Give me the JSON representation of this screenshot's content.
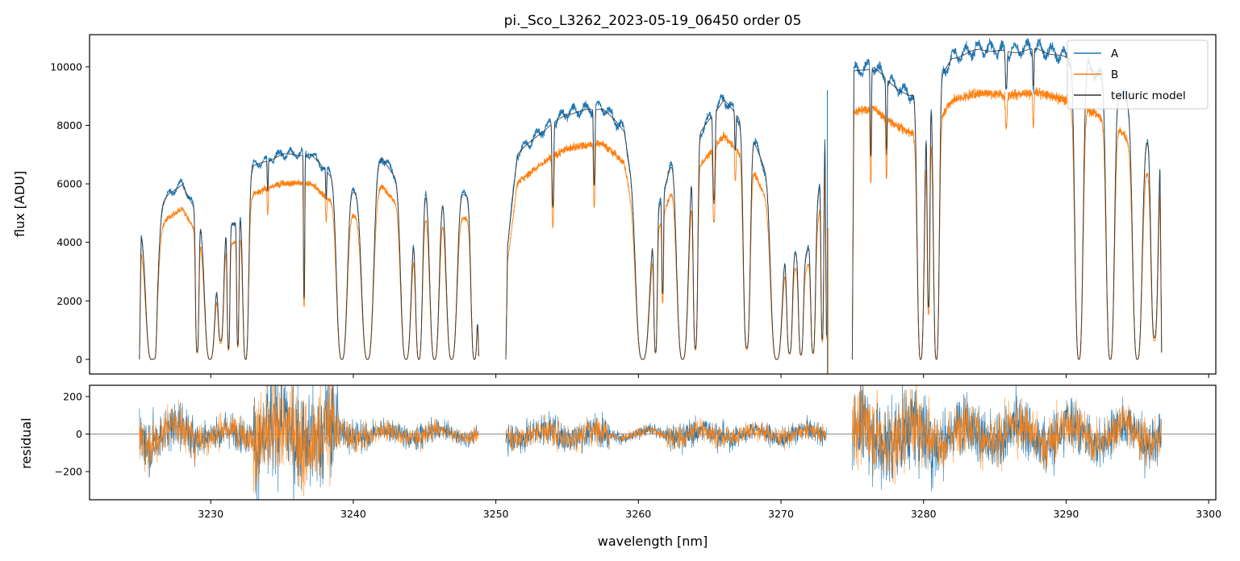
{
  "chart_data": {
    "type": "line",
    "title": "pi._Sco_L3262_2023-05-19_06450  order 05",
    "colors": {
      "A": "#1f77b4",
      "B": "#ff7f0e",
      "telluric": "#333333",
      "zero_line": "#666666"
    },
    "top_panel": {
      "ylabel": "flux [ADU]",
      "ylim": [
        -500,
        11100
      ],
      "yticks": [
        0,
        2000,
        4000,
        6000,
        8000,
        10000
      ],
      "ytick_labels": [
        "0",
        "2000",
        "4000",
        "6000",
        "8000",
        "10000"
      ],
      "legend": {
        "placement": "top-right",
        "entries": [
          "A",
          "B",
          "telluric model"
        ]
      },
      "segments": [
        {
          "x_range": [
            3225.0,
            3248.8
          ],
          "levels": [
            [
              3225.0,
              4300
            ],
            [
              3227.0,
              5600
            ],
            [
              3228.0,
              6000
            ],
            [
              3230.0,
              4000
            ],
            [
              3232.0,
              4800
            ],
            [
              3233.0,
              6600
            ],
            [
              3235.0,
              7000
            ],
            [
              3237.0,
              7000
            ],
            [
              3239.0,
              6000
            ],
            [
              3240.5,
              5600
            ],
            [
              3242.0,
              6900
            ],
            [
              3244.0,
              5500
            ],
            [
              3246.0,
              6000
            ],
            [
              3248.8,
              5400
            ]
          ],
          "b_ratio": 0.86,
          "dips": [
            [
              3225.85,
              0.5,
              1.0
            ],
            [
              3226.05,
              0.15,
              0.95
            ],
            [
              3229.05,
              0.15,
              0.95
            ],
            [
              3229.95,
              0.45,
              1.0
            ],
            [
              3230.7,
              0.25,
              0.85
            ],
            [
              3231.25,
              0.12,
              0.92
            ],
            [
              3231.9,
              0.1,
              0.9
            ],
            [
              3232.45,
              0.25,
              1.0
            ],
            [
              3236.55,
              0.06,
              0.7
            ],
            [
              3239.2,
              0.45,
              1.0
            ],
            [
              3241.0,
              0.5,
              1.0
            ],
            [
              3243.7,
              0.45,
              1.0
            ],
            [
              3244.6,
              0.3,
              1.0
            ],
            [
              3245.7,
              0.4,
              1.0
            ],
            [
              3246.9,
              0.45,
              1.0
            ],
            [
              3248.5,
              0.3,
              1.0
            ],
            [
              3234.0,
              0.05,
              0.15
            ],
            [
              3238.1,
              0.05,
              0.15
            ]
          ]
        },
        {
          "x_range": [
            3250.7,
            3273.2
          ],
          "levels": [
            [
              3250.7,
              3300
            ],
            [
              3251.5,
              7000
            ],
            [
              3253.0,
              7700
            ],
            [
              3255.0,
              8400
            ],
            [
              3257.5,
              8600
            ],
            [
              3259.0,
              7800
            ],
            [
              3260.3,
              3800
            ],
            [
              3261.5,
              5300
            ],
            [
              3262.5,
              7000
            ],
            [
              3264.0,
              7500
            ],
            [
              3266.0,
              8900
            ],
            [
              3268.0,
              7600
            ],
            [
              3270.0,
              5000
            ],
            [
              3271.5,
              3000
            ],
            [
              3272.5,
              5000
            ],
            [
              3273.2,
              8300
            ]
          ],
          "b_ratio": 0.86,
          "dips": [
            [
              3254.0,
              0.08,
              0.35
            ],
            [
              3256.9,
              0.07,
              0.3
            ],
            [
              3260.3,
              0.55,
              1.0
            ],
            [
              3261.2,
              0.15,
              0.95
            ],
            [
              3261.7,
              0.08,
              0.6
            ],
            [
              3263.1,
              0.5,
              1.0
            ],
            [
              3264.0,
              0.2,
              0.95
            ],
            [
              3265.3,
              0.1,
              0.35
            ],
            [
              3266.8,
              0.06,
              0.15
            ],
            [
              3267.6,
              0.3,
              0.95
            ],
            [
              3269.7,
              0.5,
              1.0
            ],
            [
              3270.6,
              0.25,
              0.95
            ],
            [
              3271.4,
              0.2,
              0.95
            ],
            [
              3272.25,
              0.2,
              0.95
            ],
            [
              3272.9,
              0.12,
              0.9
            ]
          ]
        },
        {
          "x_range": [
            3275.0,
            3296.7
          ],
          "levels": [
            [
              3275.0,
              9800
            ],
            [
              3276.5,
              10000
            ],
            [
              3277.5,
              9500
            ],
            [
              3279.0,
              9000
            ],
            [
              3280.5,
              9000
            ],
            [
              3282.0,
              10300
            ],
            [
              3284.0,
              10600
            ],
            [
              3286.0,
              10500
            ],
            [
              3288.0,
              10600
            ],
            [
              3290.0,
              10300
            ],
            [
              3292.0,
              9800
            ],
            [
              3294.0,
              9000
            ],
            [
              3295.5,
              7500
            ],
            [
              3296.7,
              7400
            ]
          ],
          "b_ratio": 0.86,
          "dips": [
            [
              3276.3,
              0.06,
              0.3
            ],
            [
              3277.4,
              0.06,
              0.25
            ],
            [
              3279.8,
              0.3,
              1.0
            ],
            [
              3280.35,
              0.12,
              0.8
            ],
            [
              3280.9,
              0.25,
              1.0
            ],
            [
              3285.8,
              0.08,
              0.12
            ],
            [
              3287.7,
              0.06,
              0.12
            ],
            [
              3290.9,
              0.35,
              1.0
            ],
            [
              3293.1,
              0.35,
              1.0
            ],
            [
              3295.0,
              0.4,
              1.0
            ],
            [
              3296.2,
              0.3,
              0.9
            ]
          ]
        }
      ]
    },
    "bottom_panel": {
      "ylabel": "residual",
      "ylim": [
        -350,
        260
      ],
      "yticks": [
        -200,
        0,
        200
      ],
      "ytick_labels": [
        "−200",
        "0",
        "200"
      ],
      "zero_line": 0,
      "regions": [
        [
          3225.0,
          3226.0,
          150
        ],
        [
          3226.0,
          3229.0,
          120
        ],
        [
          3229.0,
          3233.0,
          90
        ],
        [
          3233.0,
          3239.0,
          280
        ],
        [
          3239.0,
          3241.0,
          90
        ],
        [
          3241.0,
          3246.0,
          60
        ],
        [
          3246.0,
          3248.8,
          40
        ],
        [
          3250.7,
          3258.0,
          80
        ],
        [
          3258.0,
          3262.0,
          30
        ],
        [
          3262.0,
          3266.0,
          70
        ],
        [
          3266.0,
          3273.2,
          55
        ],
        [
          3275.0,
          3281.0,
          220
        ],
        [
          3281.0,
          3291.0,
          150
        ],
        [
          3291.0,
          3296.7,
          120
        ]
      ]
    },
    "x_axis": {
      "xlabel": "wavelength [nm]",
      "xlim": [
        3221.5,
        3300.5
      ],
      "xticks": [
        3230,
        3240,
        3250,
        3260,
        3270,
        3280,
        3290,
        3300
      ],
      "xtick_labels": [
        "3230",
        "3240",
        "3250",
        "3260",
        "3270",
        "3280",
        "3290",
        "3300"
      ]
    }
  }
}
